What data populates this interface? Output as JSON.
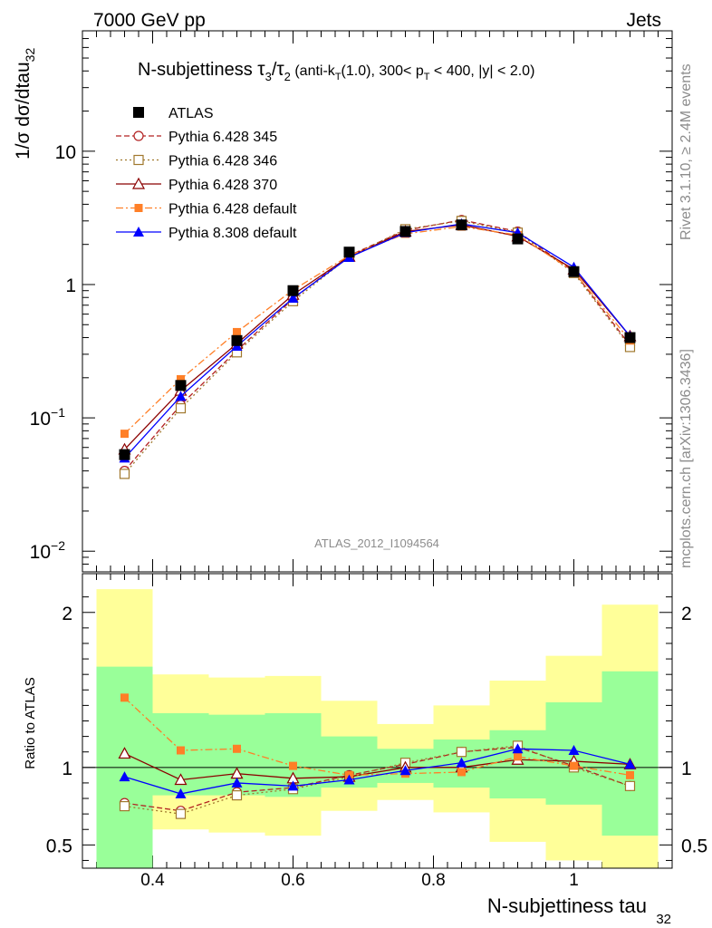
{
  "header": {
    "energy_label": "7000 GeV pp",
    "category_label": "Jets"
  },
  "side_labels": {
    "rivet": "Rivet 3.1.10, ≥ 2.4M events",
    "mcplots": "mcplots.cern.ch [arXiv:1306.3436]"
  },
  "analysis_id": "ATLAS_2012_I1094564",
  "colors": {
    "data": "#000000",
    "p345": "#b22222",
    "p346": "#a0782d",
    "p370": "#8b0000",
    "p6def": "#ff7f27",
    "p8def": "#0000ff",
    "band_inner": "#99ff99",
    "band_outer": "#ffff99"
  },
  "chart_data": [
    {
      "type": "line",
      "title": "N-subjettiness τ₃/τ₂ (anti-k_T(1.0), 300< p_T < 400, |y| < 2.0)",
      "title_parts": {
        "main": "N-subjettiness ",
        "tau": "τ",
        "sub3": "3",
        "slash": "/",
        "sub2": "2",
        "cond_a": " (anti-k",
        "sub_T1": "T",
        "cond_b": "(1.0), 300< p",
        "sub_T2": "T",
        "cond_c": " < 400, |y| < 2.0)"
      },
      "ylabel": "1/σ dσ/dtau",
      "ylabel_sub": "32",
      "yscale": "log",
      "ylim": [
        0.007,
        80
      ],
      "xlim": [
        0.3,
        1.14
      ],
      "yticks": [
        {
          "v": 10,
          "label": "10"
        },
        {
          "v": 1,
          "label": "1"
        },
        {
          "v": 0.1,
          "label": "10",
          "exp": "−1"
        },
        {
          "v": 0.01,
          "label": "10",
          "exp": "−2"
        }
      ],
      "legend_placement": "top-left",
      "x": [
        0.36,
        0.44,
        0.52,
        0.6,
        0.68,
        0.76,
        0.84,
        0.92,
        1.0,
        1.08
      ],
      "data": {
        "name": "ATLAS",
        "values": [
          0.053,
          0.175,
          0.38,
          0.9,
          1.75,
          2.5,
          2.8,
          2.2,
          1.25,
          0.4
        ]
      },
      "series": [
        {
          "name": "Pythia 6.428 345",
          "key": "p345",
          "values": [
            0.04,
            0.125,
            0.32,
            0.78,
            1.65,
            2.55,
            3.05,
            2.5,
            1.25,
            0.35
          ]
        },
        {
          "name": "Pythia 6.428 346",
          "key": "p346",
          "values": [
            0.038,
            0.118,
            0.31,
            0.75,
            1.62,
            2.6,
            3.0,
            2.45,
            1.22,
            0.34
          ]
        },
        {
          "name": "Pythia 6.428 370",
          "key": "p370",
          "values": [
            0.058,
            0.16,
            0.36,
            0.84,
            1.62,
            2.5,
            2.8,
            2.3,
            1.3,
            0.41
          ]
        },
        {
          "name": "Pythia 6.428 default",
          "key": "p6def",
          "values": [
            0.076,
            0.195,
            0.44,
            0.91,
            1.65,
            2.4,
            2.72,
            2.35,
            1.25,
            0.38
          ]
        },
        {
          "name": "Pythia 8.308 default",
          "key": "p8def",
          "values": [
            0.05,
            0.145,
            0.345,
            0.79,
            1.6,
            2.45,
            2.85,
            2.45,
            1.35,
            0.41
          ]
        }
      ]
    },
    {
      "type": "line",
      "ylabel": "Ratio to ATLAS",
      "xlabel": "N-subjettiness tau",
      "xlabel_sub": "32",
      "ylim": [
        0.35,
        2.25
      ],
      "xlim": [
        0.3,
        1.14
      ],
      "xticks": [
        {
          "v": 0.4,
          "label": "0.4"
        },
        {
          "v": 0.6,
          "label": "0.6"
        },
        {
          "v": 0.8,
          "label": "0.8"
        },
        {
          "v": 1.0,
          "label": "1"
        }
      ],
      "yticks": [
        {
          "v": 2,
          "label": "2"
        },
        {
          "v": 1,
          "label": "1"
        },
        {
          "v": 0.5,
          "label": "0.5"
        }
      ],
      "bins": [
        {
          "lo": 0.32,
          "hi": 0.4,
          "inner": [
            0.3,
            1.65
          ],
          "outer": [
            0.3,
            2.15
          ]
        },
        {
          "lo": 0.4,
          "hi": 0.48,
          "inner": [
            0.82,
            1.35
          ],
          "outer": [
            0.6,
            1.6
          ]
        },
        {
          "lo": 0.48,
          "hi": 0.56,
          "inner": [
            0.82,
            1.34
          ],
          "outer": [
            0.58,
            1.58
          ]
        },
        {
          "lo": 0.56,
          "hi": 0.64,
          "inner": [
            0.81,
            1.35
          ],
          "outer": [
            0.56,
            1.59
          ]
        },
        {
          "lo": 0.64,
          "hi": 0.72,
          "inner": [
            0.87,
            1.2
          ],
          "outer": [
            0.72,
            1.43
          ]
        },
        {
          "lo": 0.72,
          "hi": 0.8,
          "inner": [
            0.9,
            1.12
          ],
          "outer": [
            0.79,
            1.28
          ]
        },
        {
          "lo": 0.8,
          "hi": 0.88,
          "inner": [
            0.87,
            1.18
          ],
          "outer": [
            0.71,
            1.4
          ]
        },
        {
          "lo": 0.88,
          "hi": 0.96,
          "inner": [
            0.8,
            1.24
          ],
          "outer": [
            0.52,
            1.56
          ]
        },
        {
          "lo": 0.96,
          "hi": 1.04,
          "inner": [
            0.76,
            1.42
          ],
          "outer": [
            0.4,
            1.72
          ]
        },
        {
          "lo": 1.04,
          "hi": 1.12,
          "inner": [
            0.56,
            1.62
          ],
          "outer": [
            0.3,
            2.05
          ]
        }
      ],
      "reference_line": 1,
      "series": [
        {
          "name": "Pythia 6.428 345",
          "key": "p345",
          "values": [
            0.77,
            0.72,
            0.84,
            0.87,
            0.95,
            1.02,
            1.1,
            1.13,
            1.01,
            0.88
          ]
        },
        {
          "name": "Pythia 6.428 346",
          "key": "p346",
          "values": [
            0.75,
            0.7,
            0.82,
            0.86,
            0.94,
            1.03,
            1.1,
            1.14,
            1.0,
            0.88
          ]
        },
        {
          "name": "Pythia 6.428 370",
          "key": "p370",
          "values": [
            1.09,
            0.92,
            0.96,
            0.93,
            0.94,
            1.0,
            1.0,
            1.05,
            1.04,
            1.02
          ]
        },
        {
          "name": "Pythia 6.428 default",
          "key": "p6def",
          "values": [
            1.45,
            1.11,
            1.12,
            1.01,
            0.95,
            0.96,
            0.97,
            1.07,
            1.01,
            0.95
          ]
        },
        {
          "name": "Pythia 8.308 default",
          "key": "p8def",
          "values": [
            0.94,
            0.83,
            0.9,
            0.88,
            0.92,
            0.98,
            1.03,
            1.12,
            1.11,
            1.02
          ]
        }
      ]
    }
  ]
}
